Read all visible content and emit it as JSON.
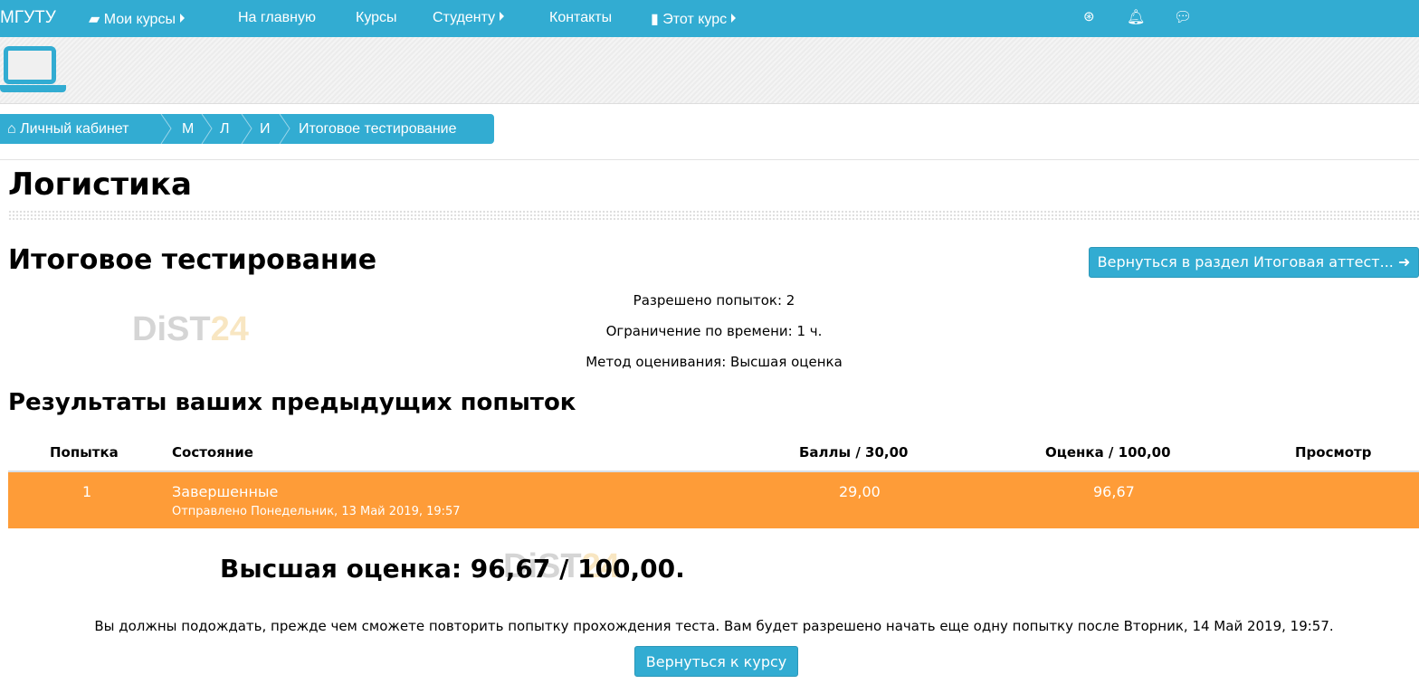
{
  "nav": {
    "brand": "МГУТУ",
    "items": [
      "Мои курсы",
      "На главную",
      "Курсы",
      "Студенту",
      "Контакты",
      "Этот курс"
    ]
  },
  "breadcrumb": [
    "Личный кабинет",
    "М",
    "Л",
    "И",
    "Итоговое тестирование"
  ],
  "page": {
    "course_title": "Логистика",
    "quiz_title": "Итоговое тестирование",
    "back_section_button": "Вернуться в раздел Итоговая аттест...",
    "info": [
      "Разрешено попыток: 2",
      "Ограничение по времени: 1 ч.",
      "Метод оценивания: Высшая оценка"
    ]
  },
  "results": {
    "title": "Результаты ваших предыдущих попыток",
    "headers": [
      "Попытка",
      "Состояние",
      "Баллы / 30,00",
      "Оценка / 100,00",
      "Просмотр"
    ],
    "rows": [
      {
        "attempt": "1",
        "state": "Завершенные",
        "submitted": "Отправлено Понедельник, 13 Май 2019, 19:57",
        "points": "29,00",
        "grade": "96,67"
      }
    ]
  },
  "best_grade": "Высшая оценка: 96,67 / 100,00.",
  "wait_note": "Вы должны подождать, прежде чем сможете повторить попытку прохождения теста. Вам будет разрешено начать еще одну попытку после Вторник, 14 Май 2019, 19:57.",
  "back_course_button": "Вернуться к курсу",
  "watermark": "DiST24",
  "colors": {
    "primary": "#32acd2",
    "row_highlight": "#fe9c38"
  }
}
